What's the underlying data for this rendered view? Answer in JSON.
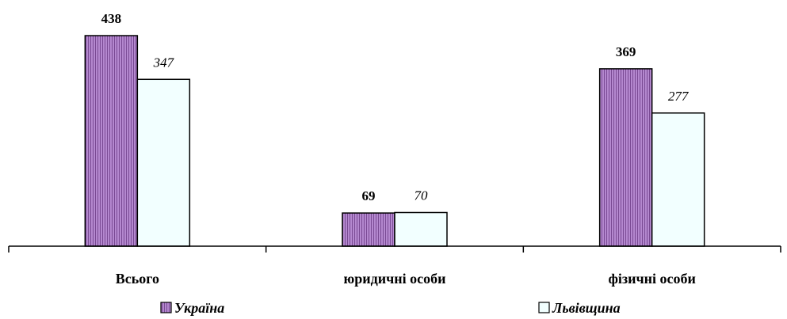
{
  "chart_data": {
    "type": "bar",
    "categories": [
      "Всього",
      "юридичні особи",
      "фізичні особи"
    ],
    "series": [
      {
        "name": "Україна",
        "values": [
          438,
          69,
          369
        ],
        "color": "#a776c4",
        "pattern": "vertical-stripes",
        "label_style": "bold"
      },
      {
        "name": "Львівщина",
        "values": [
          347,
          70,
          277
        ],
        "color": "#f2ffff",
        "pattern": "solid",
        "label_style": "italic"
      }
    ],
    "ylim": [
      0,
      500
    ],
    "grid": false,
    "legend_position": "bottom"
  }
}
